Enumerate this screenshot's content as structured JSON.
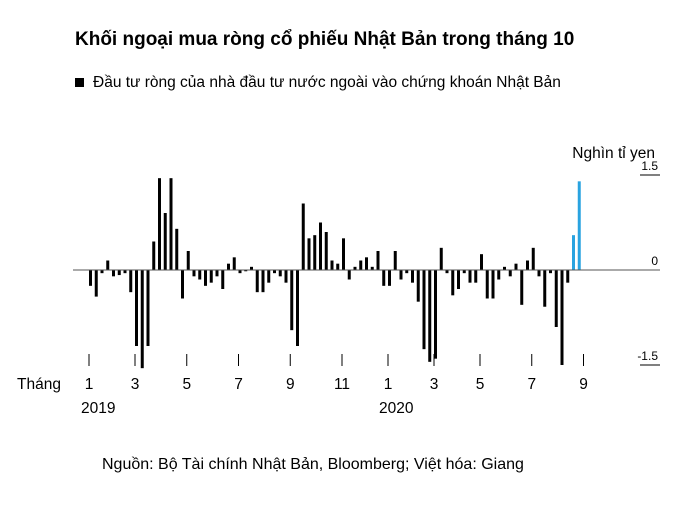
{
  "chart_data": {
    "type": "bar",
    "title": "Khối ngoại mua ròng cổ phiếu Nhật Bản trong tháng 10",
    "legend": [
      "Đầu tư ròng của nhà đầu tư nước ngoài vào chứng khoán Nhật Bản"
    ],
    "unit_label": "Nghìn tỉ yen",
    "xlabel": "Tháng",
    "x_tick_labels": [
      "1",
      "3",
      "5",
      "7",
      "9",
      "11",
      "1",
      "3",
      "5",
      "7",
      "9"
    ],
    "year_labels": [
      "2019",
      "2020"
    ],
    "y_tick_labels": [
      "1.5",
      "0",
      "-1.5"
    ],
    "ylim": [
      -1.6,
      1.7
    ],
    "grid": false,
    "colors": {
      "bar": "#000000",
      "highlight": "#29a3e0",
      "zero_line": "#555555"
    },
    "source": "Nguồn: Bộ Tài chính Nhật Bản, Bloomberg; Việt hóa: Giang",
    "values": [
      -0.25,
      -0.42,
      -0.05,
      0.15,
      -0.1,
      -0.08,
      -0.05,
      -0.35,
      -1.2,
      -1.55,
      -1.2,
      0.45,
      1.45,
      0.9,
      1.45,
      0.65,
      -0.45,
      0.3,
      -0.1,
      -0.15,
      -0.25,
      -0.2,
      -0.1,
      -0.3,
      0.1,
      0.2,
      -0.05,
      -0.02,
      0.05,
      -0.35,
      -0.35,
      -0.2,
      -0.05,
      -0.1,
      -0.2,
      -0.95,
      -1.2,
      1.05,
      0.5,
      0.55,
      0.75,
      0.6,
      0.15,
      0.1,
      0.5,
      -0.15,
      0.05,
      0.15,
      0.2,
      0.05,
      0.3,
      -0.25,
      -0.25,
      0.3,
      -0.15,
      -0.05,
      -0.2,
      -0.5,
      -1.25,
      -1.45,
      -1.4,
      0.35,
      -0.05,
      -0.4,
      -0.3,
      -0.05,
      -0.2,
      -0.2,
      0.25,
      -0.45,
      -0.45,
      -0.15,
      0.05,
      -0.1,
      0.1,
      -0.55,
      0.15,
      0.35,
      -0.1,
      -0.58,
      -0.05,
      -0.9,
      -1.5,
      -0.2,
      0.55,
      1.4
    ],
    "highlight_indices": [
      84,
      85
    ]
  }
}
